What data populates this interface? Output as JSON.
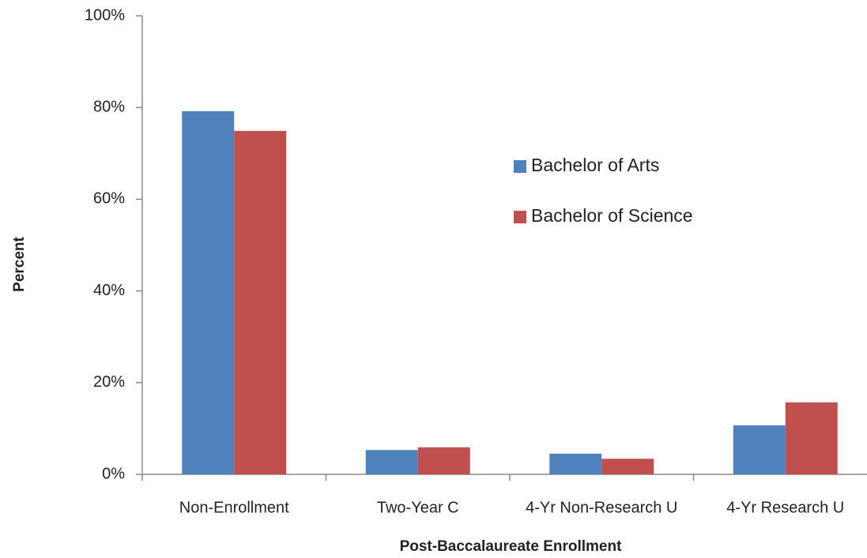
{
  "chart_data": {
    "type": "bar",
    "xlabel": "Post-Baccalaureate Enrollment",
    "ylabel": "Percent",
    "categories": [
      "Non-Enrollment",
      "Two-Year C",
      "4-Yr Non-Research U",
      "4-Yr Research U"
    ],
    "series": [
      {
        "name": "Bachelor of Arts",
        "color": "#4f81bd",
        "values": [
          79.2,
          5.3,
          4.5,
          10.7
        ]
      },
      {
        "name": "Bachelor of Science",
        "color": "#c0504d",
        "values": [
          74.9,
          5.9,
          3.4,
          15.7
        ]
      }
    ],
    "ylim": [
      0,
      100
    ],
    "yticks": [
      {
        "value": 0,
        "label": "0%"
      },
      {
        "value": 20,
        "label": "20%"
      },
      {
        "value": 40,
        "label": "40%"
      },
      {
        "value": 60,
        "label": "60%"
      },
      {
        "value": 80,
        "label": "80%"
      },
      {
        "value": 100,
        "label": "100%"
      }
    ],
    "legend": "right"
  }
}
